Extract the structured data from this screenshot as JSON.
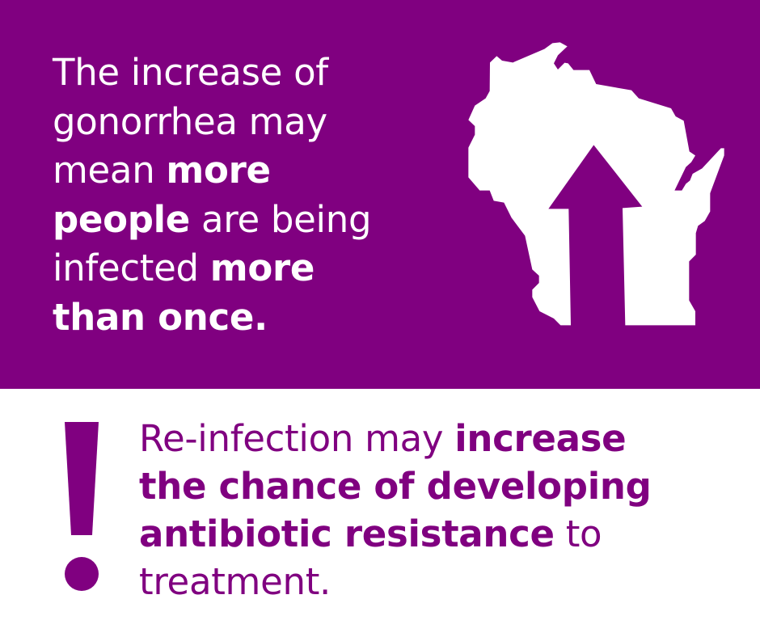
{
  "colors": {
    "brand_purple": "#800080",
    "text_light": "#ffffff"
  },
  "top": {
    "lines": [
      [
        {
          "t": "The increase of"
        }
      ],
      [
        {
          "t": "gonorrhea may"
        }
      ],
      [
        {
          "t": "mean "
        },
        {
          "t": "more"
        }
      ],
      [
        {
          "t": "people"
        },
        {
          "t": " are being"
        }
      ],
      [
        {
          "t": "infected "
        },
        {
          "t": "more"
        }
      ],
      [
        {
          "t": "than once."
        }
      ]
    ],
    "map_icon": "wisconsin-state-with-up-arrow"
  },
  "bottom": {
    "icon": "exclamation-mark",
    "lines": [
      [
        {
          "t": "Re-infection may "
        },
        {
          "t": "increase"
        }
      ],
      [
        {
          "t": "the chance of developing"
        }
      ],
      [
        {
          "t": "antibiotic resistance"
        },
        {
          "t": " to"
        }
      ],
      [
        {
          "t": "treatment."
        }
      ]
    ]
  }
}
